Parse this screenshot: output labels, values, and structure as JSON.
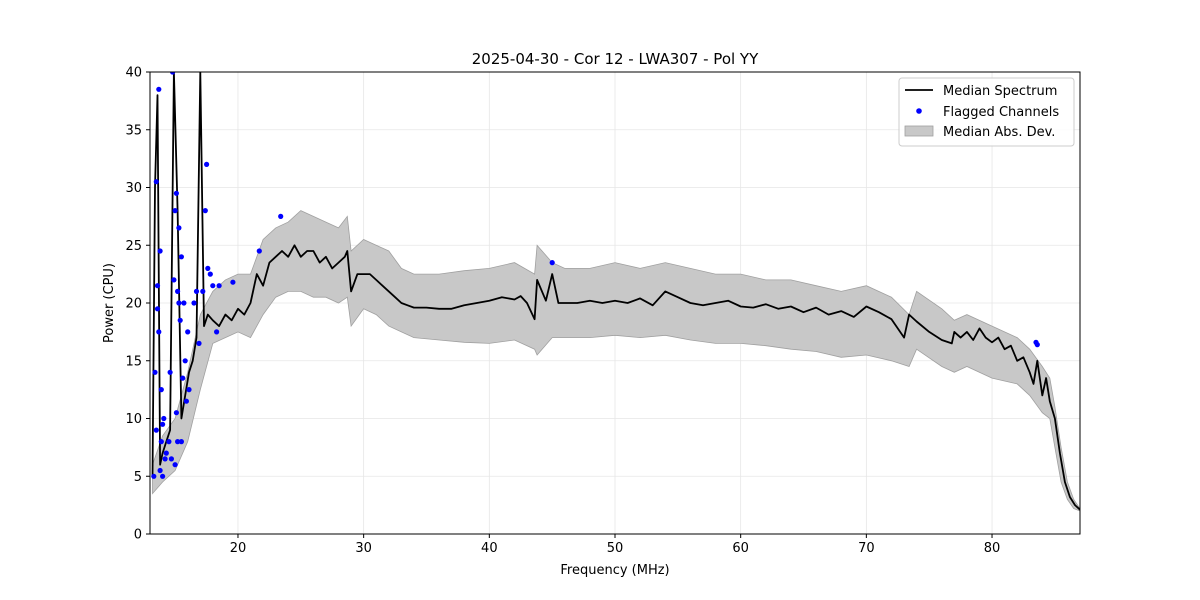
{
  "chart_data": {
    "type": "line",
    "title": "2025-04-30 - Cor 12 - LWA307 - Pol YY",
    "xlabel": "Frequency (MHz)",
    "ylabel": "Power (CPU)",
    "xlim": [
      13.0,
      87.0
    ],
    "ylim": [
      0,
      40
    ],
    "xticks": [
      20,
      30,
      40,
      50,
      60,
      70,
      80
    ],
    "yticks": [
      0,
      5,
      10,
      15,
      20,
      25,
      30,
      35,
      40
    ],
    "grid": true,
    "legend_position": "top-right",
    "colors": {
      "median": "#000000",
      "flagged": "#0000ff",
      "mad_fill": "#c8c8c8",
      "mad_edge": "#a0a0a0"
    },
    "legend": [
      {
        "label": "Median Spectrum",
        "kind": "line"
      },
      {
        "label": "Flagged Channels",
        "kind": "marker"
      },
      {
        "label": "Median Abs. Dev.",
        "kind": "patch"
      }
    ],
    "median_spectrum": {
      "name": "Median Spectrum",
      "x": [
        13.2,
        13.4,
        13.6,
        13.8,
        14.0,
        14.3,
        14.6,
        14.9,
        15.2,
        15.5,
        15.8,
        16.1,
        16.4,
        16.7,
        17.0,
        17.3,
        17.6,
        18.0,
        18.5,
        19.0,
        19.5,
        20.0,
        20.5,
        21.0,
        21.5,
        22.0,
        22.5,
        23.0,
        23.5,
        24.0,
        24.5,
        25.0,
        25.5,
        26.0,
        26.5,
        27.0,
        27.5,
        28.0,
        28.5,
        28.7,
        29.0,
        29.5,
        30.0,
        30.5,
        31.0,
        31.5,
        32.0,
        32.5,
        33.0,
        33.5,
        34.0,
        35.0,
        36.0,
        37.0,
        38.0,
        39.0,
        40.0,
        41.0,
        42.0,
        42.5,
        43.0,
        43.6,
        43.8,
        44.5,
        45.0,
        45.5,
        46.0,
        47.0,
        48.0,
        49.0,
        50.0,
        51.0,
        52.0,
        53.0,
        54.0,
        55.0,
        56.0,
        57.0,
        58.0,
        59.0,
        60.0,
        61.0,
        62.0,
        63.0,
        64.0,
        65.0,
        66.0,
        67.0,
        68.0,
        69.0,
        70.0,
        71.0,
        72.0,
        73.0,
        73.4,
        74.0,
        75.0,
        76.0,
        76.8,
        77.0,
        77.5,
        78.0,
        78.5,
        79.0,
        79.5,
        80.0,
        80.5,
        81.0,
        81.5,
        82.0,
        82.5,
        83.0,
        83.3,
        83.6,
        84.0,
        84.3,
        84.6,
        85.0,
        85.4,
        85.8,
        86.2,
        86.6,
        87.0
      ],
      "y": [
        5.0,
        30.0,
        38.0,
        6.0,
        7.0,
        8.0,
        9.0,
        40.0,
        28.0,
        10.0,
        12.0,
        14.0,
        15.0,
        17.0,
        40.0,
        18.0,
        19.0,
        18.5,
        18.0,
        19.0,
        18.5,
        19.5,
        19.0,
        20.0,
        22.5,
        21.5,
        23.5,
        24.0,
        24.5,
        24.0,
        25.0,
        24.0,
        24.5,
        24.5,
        23.5,
        24.0,
        23.0,
        23.5,
        24.0,
        24.5,
        21.0,
        22.5,
        22.5,
        22.5,
        22.0,
        21.5,
        21.0,
        20.5,
        20.0,
        19.8,
        19.6,
        19.6,
        19.5,
        19.5,
        19.8,
        20.0,
        20.2,
        20.5,
        20.3,
        20.6,
        20.0,
        18.6,
        22.0,
        20.2,
        22.5,
        20.0,
        20.0,
        20.0,
        20.2,
        20.0,
        20.2,
        20.0,
        20.4,
        19.8,
        21.0,
        20.5,
        20.0,
        19.8,
        20.0,
        20.2,
        19.7,
        19.6,
        19.9,
        19.5,
        19.7,
        19.2,
        19.6,
        19.0,
        19.3,
        18.8,
        19.7,
        19.2,
        18.6,
        17.0,
        19.0,
        18.4,
        17.5,
        16.8,
        16.5,
        17.5,
        17.0,
        17.5,
        16.8,
        17.8,
        17.0,
        16.6,
        17.0,
        16.0,
        16.3,
        15.0,
        15.3,
        14.0,
        13.0,
        15.0,
        12.0,
        13.5,
        11.5,
        10.0,
        7.0,
        4.5,
        3.2,
        2.5,
        2.1
      ]
    },
    "mad_band": {
      "name": "Median Abs. Dev.",
      "x": [
        13.2,
        14.0,
        15.0,
        16.0,
        17.0,
        18.0,
        19.0,
        20.0,
        21.0,
        22.0,
        23.0,
        24.0,
        25.0,
        26.0,
        27.0,
        28.0,
        28.7,
        29.0,
        30.0,
        31.0,
        32.0,
        33.0,
        34.0,
        36.0,
        38.0,
        40.0,
        42.0,
        43.6,
        43.8,
        45.0,
        46.0,
        48.0,
        50.0,
        52.0,
        54.0,
        56.0,
        58.0,
        60.0,
        62.0,
        64.0,
        66.0,
        68.0,
        70.0,
        72.0,
        73.4,
        74.0,
        76.0,
        77.0,
        78.0,
        80.0,
        82.0,
        83.0,
        84.0,
        84.6,
        85.0,
        85.5,
        86.0,
        86.5,
        87.0
      ],
      "upper": [
        6.0,
        8.5,
        10.0,
        14.0,
        19.0,
        21.0,
        22.0,
        22.5,
        22.5,
        25.5,
        26.5,
        27.0,
        28.0,
        27.5,
        27.0,
        26.5,
        27.5,
        24.5,
        25.5,
        25.0,
        24.5,
        23.0,
        22.5,
        22.5,
        22.8,
        23.0,
        23.5,
        22.5,
        25.0,
        23.5,
        23.0,
        23.0,
        23.5,
        23.0,
        23.5,
        23.0,
        22.5,
        22.5,
        22.0,
        22.0,
        21.5,
        21.0,
        21.5,
        20.5,
        19.0,
        21.0,
        19.5,
        18.5,
        19.0,
        18.0,
        17.0,
        16.0,
        14.5,
        13.5,
        11.0,
        7.5,
        4.5,
        3.0,
        2.2
      ],
      "lower": [
        3.5,
        4.5,
        5.5,
        8.0,
        12.5,
        16.5,
        17.0,
        17.5,
        17.0,
        19.0,
        20.5,
        21.0,
        21.0,
        20.5,
        20.5,
        20.0,
        20.5,
        18.0,
        19.5,
        19.0,
        18.0,
        17.5,
        17.0,
        16.8,
        16.6,
        16.5,
        16.8,
        16.0,
        15.5,
        17.0,
        17.0,
        17.0,
        17.2,
        17.0,
        17.2,
        16.8,
        16.5,
        16.5,
        16.3,
        16.0,
        15.8,
        15.3,
        15.5,
        15.0,
        14.5,
        16.0,
        14.5,
        14.0,
        14.5,
        13.5,
        13.0,
        12.0,
        10.5,
        10.0,
        7.5,
        4.5,
        3.0,
        2.2,
        2.0
      ]
    },
    "flagged_channels": {
      "name": "Flagged Channels",
      "x": [
        13.3,
        13.4,
        13.5,
        13.5,
        13.6,
        13.6,
        13.7,
        13.7,
        13.8,
        13.8,
        13.9,
        13.9,
        14.0,
        14.0,
        14.1,
        14.2,
        14.3,
        14.5,
        14.6,
        14.7,
        14.8,
        14.9,
        15.0,
        15.0,
        15.1,
        15.1,
        15.2,
        15.2,
        15.3,
        15.3,
        15.4,
        15.5,
        15.5,
        15.6,
        15.7,
        15.8,
        15.9,
        16.0,
        16.1,
        16.5,
        16.7,
        16.9,
        17.2,
        17.4,
        17.5,
        17.6,
        17.8,
        18.0,
        18.3,
        18.5,
        19.6,
        21.7,
        23.4,
        45.0,
        83.5,
        83.6
      ],
      "y": [
        5.0,
        14.0,
        30.5,
        9.0,
        21.5,
        19.5,
        38.5,
        17.5,
        24.5,
        5.5,
        12.5,
        8.0,
        5.0,
        9.5,
        10.0,
        6.5,
        7.0,
        8.0,
        14.0,
        6.5,
        40.0,
        22.0,
        28.0,
        6.0,
        29.5,
        10.5,
        21.0,
        8.0,
        20.0,
        26.5,
        18.5,
        24.0,
        8.0,
        13.5,
        20.0,
        15.0,
        11.5,
        17.5,
        12.5,
        20.0,
        21.0,
        16.5,
        21.0,
        28.0,
        32.0,
        23.0,
        22.5,
        21.5,
        17.5,
        21.5,
        21.8,
        24.5,
        27.5,
        23.5,
        16.6,
        16.4
      ]
    }
  }
}
